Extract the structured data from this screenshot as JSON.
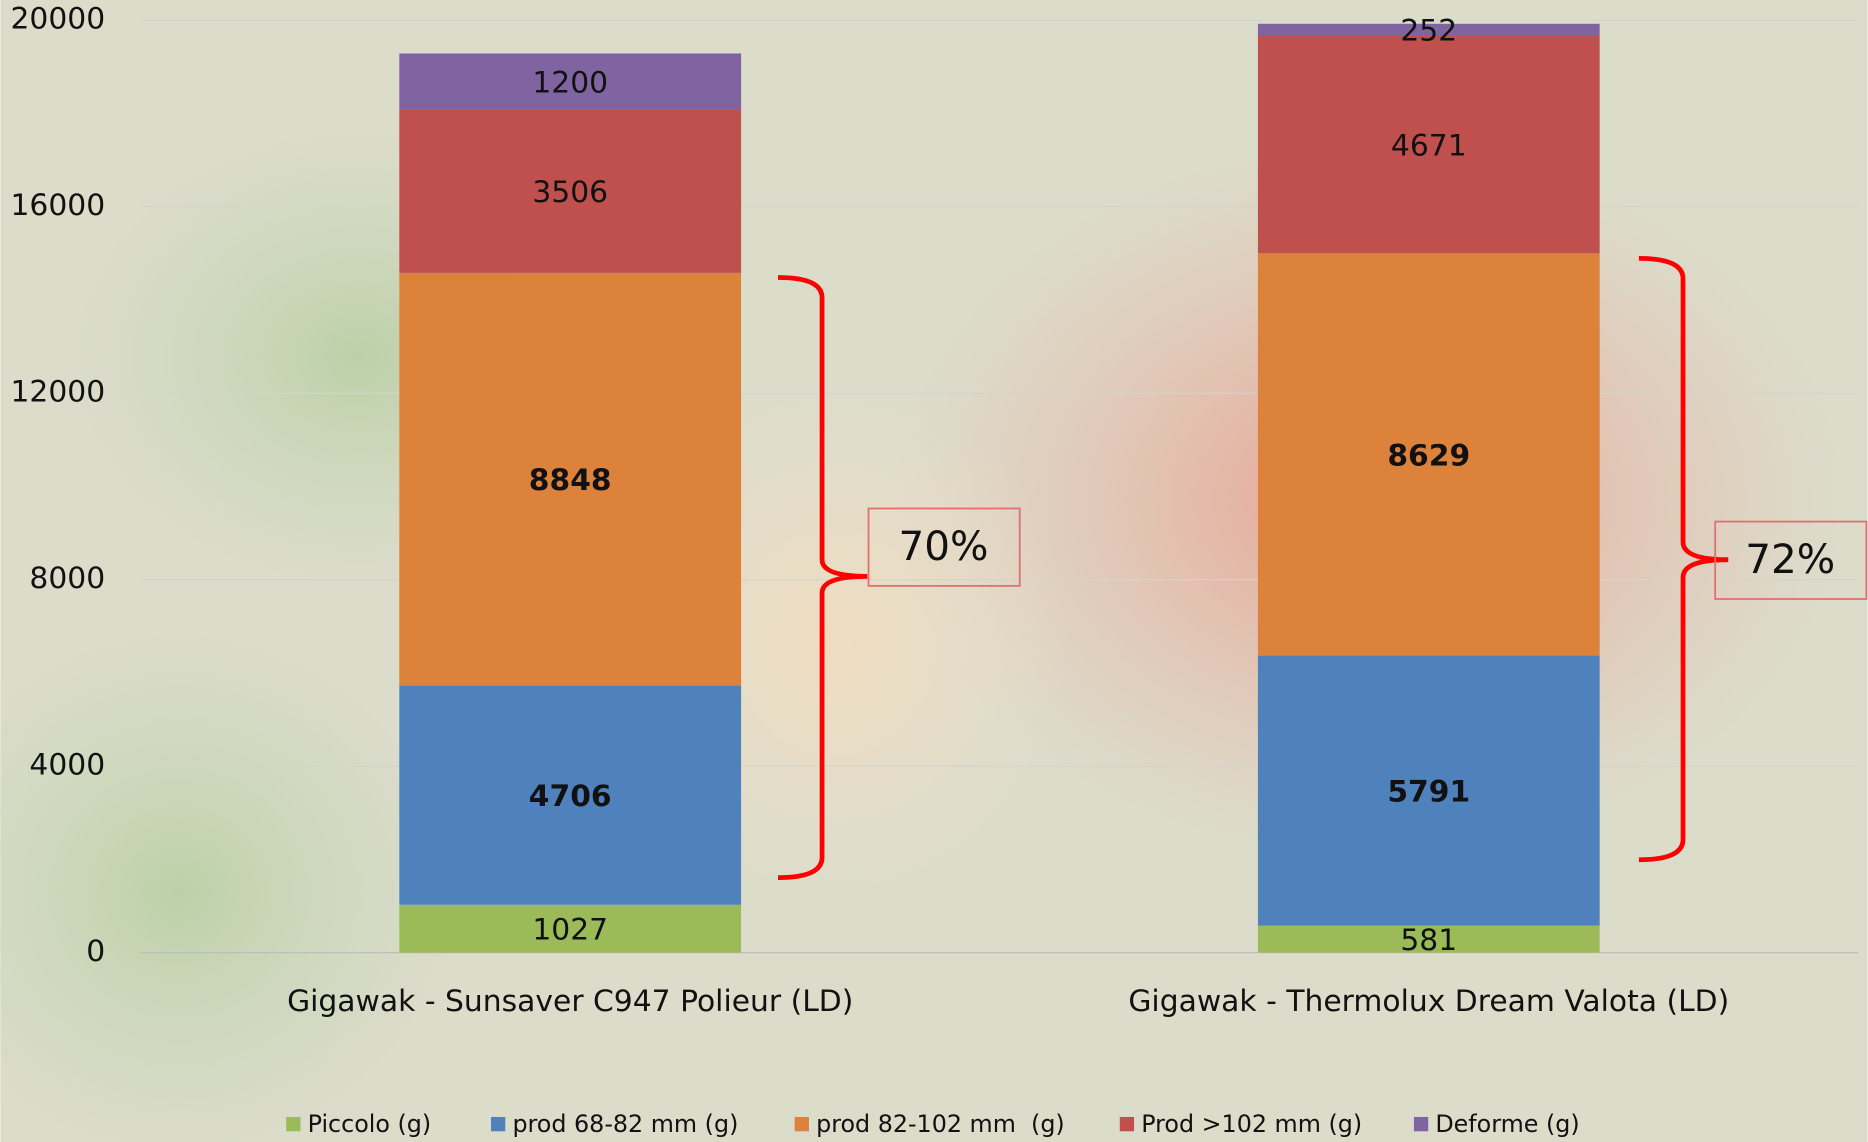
{
  "chart_data": {
    "type": "stacked_bar",
    "categories": [
      "Gigawak - Sunsaver C947 Polieur (LD)",
      "Gigawak - Thermolux Dream Valota (LD)"
    ],
    "series": [
      {
        "name": "Piccolo (g)",
        "color": "#9BBB59",
        "values": [
          1027,
          581
        ]
      },
      {
        "name": "prod 68-82 mm (g)",
        "color": "#4F81BD",
        "values": [
          4706,
          5791
        ]
      },
      {
        "name": "prod 82-102 mm  (g)",
        "color": "#DD823B",
        "values": [
          8848,
          8629
        ]
      },
      {
        "name": "Prod >102 mm (g)",
        "color": "#C0504D",
        "values": [
          3506,
          4671
        ]
      },
      {
        "name": "Deforme (g)",
        "color": "#8064A2",
        "values": [
          1200,
          252
        ]
      }
    ],
    "ylim": [
      0,
      20000
    ],
    "yticks": [
      0,
      4000,
      8000,
      12000,
      16000,
      20000
    ],
    "grid": true,
    "legend": "bottom",
    "annotations": [
      "70%",
      "72%"
    ]
  }
}
